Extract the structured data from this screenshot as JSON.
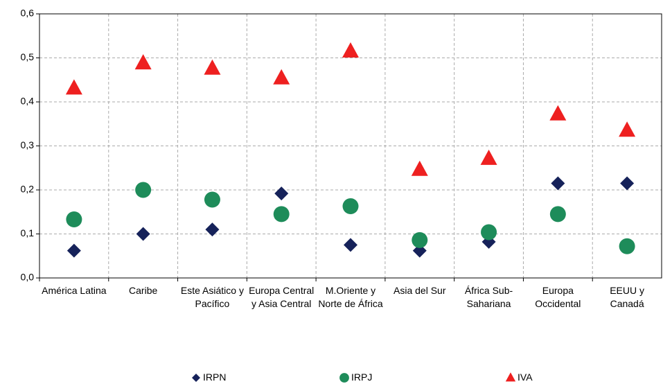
{
  "chart_data": {
    "type": "scatter",
    "categories": [
      "América Latina",
      "Caribe",
      "Este Asiático y Pacífico",
      "Europa Central y Asia Central",
      "M.Oriente y Norte de África",
      "Asia del Sur",
      "África Sub-Sahariana",
      "Europa Occidental",
      "EEUU y Canadá"
    ],
    "series": [
      {
        "name": "IRPN",
        "color": "#16225a",
        "marker": "diamond",
        "values": [
          0.062,
          0.1,
          0.11,
          0.192,
          0.075,
          0.062,
          0.082,
          0.215,
          0.215
        ]
      },
      {
        "name": "IRPJ",
        "color": "#1e8c5a",
        "marker": "circle",
        "values": [
          0.133,
          0.2,
          0.178,
          0.145,
          0.163,
          0.086,
          0.104,
          0.145,
          0.072
        ]
      },
      {
        "name": "IVA",
        "color": "#ee2020",
        "marker": "triangle",
        "values": [
          0.431,
          0.488,
          0.476,
          0.454,
          0.515,
          0.246,
          0.271,
          0.372,
          0.335
        ]
      }
    ],
    "ylim": [
      0,
      0.6
    ],
    "yticks": [
      {
        "value": 0,
        "label": "0,0"
      },
      {
        "value": 0.1,
        "label": "0,1"
      },
      {
        "value": 0.2,
        "label": "0,2"
      },
      {
        "value": 0.3,
        "label": "0,3"
      },
      {
        "value": 0.4,
        "label": "0,4"
      },
      {
        "value": 0.5,
        "label": "0,5"
      },
      {
        "value": 0.6,
        "label": "0,6"
      }
    ],
    "grid": true,
    "legend": "bottom"
  }
}
